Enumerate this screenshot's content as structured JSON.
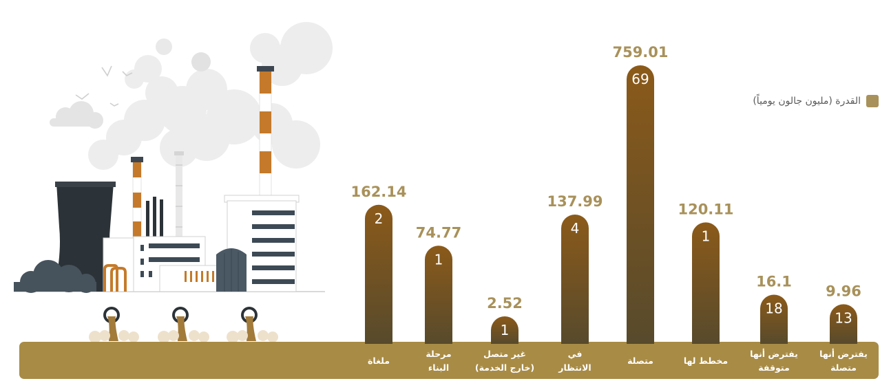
{
  "legend": {
    "label": "القدرة (مليون جالون يومياً)",
    "color": "#a8915a"
  },
  "colors": {
    "bar_top": "#8b5a1a",
    "bar_bottom": "#574a2c",
    "band": "#a88b45",
    "value_text": "#a8915a"
  },
  "chart_data": {
    "type": "bar",
    "categories": [
      "ملغاة",
      "مرحلة\nالبناء",
      "غير متصل\n(خارج الخدمة)",
      "في\nالانتظار",
      "متصلة",
      "مخطط لها",
      "يفترض أنها\nمتوقفة",
      "يفترض أنها\nمتصلة"
    ],
    "series": [
      {
        "name": "القدرة (مليون جالون يومياً)",
        "values": [
          162.14,
          74.77,
          2.52,
          137.99,
          759.01,
          120.11,
          16.1,
          9.96
        ]
      }
    ],
    "counts": [
      2,
      1,
      1,
      4,
      69,
      1,
      18,
      13
    ],
    "value_labels": [
      "162.14",
      "74.77",
      "2.52",
      "137.99",
      "759.01",
      "120.11",
      "16.1",
      "9.96"
    ],
    "count_labels": [
      "2",
      "1",
      "1",
      "4",
      "69",
      "1",
      "18",
      "13"
    ],
    "title": "",
    "xlabel": "",
    "ylabel": "",
    "grid": false,
    "legend_position": "top-right"
  }
}
